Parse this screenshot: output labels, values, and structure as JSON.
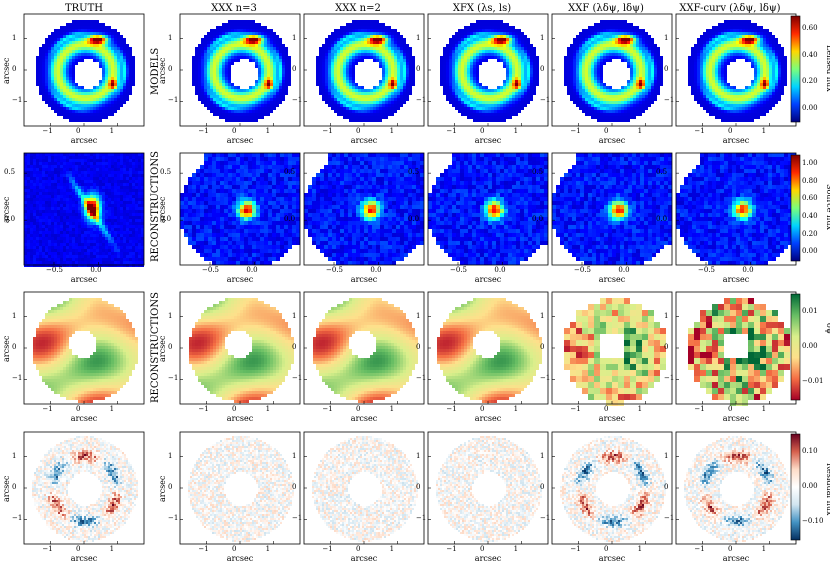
{
  "columns": [
    "TRUTH",
    "XXX n=3",
    "XXX n=2",
    "XFX (λs, ls)",
    "XXF (λδψ, lδψ)",
    "XXF-curv (λδψ, lδψ)"
  ],
  "row_labels": {
    "models": "MODELS",
    "reconstructions_source": "RECONSTRUCTIONS",
    "reconstructions_potential": "RECONSTRUCTIONS"
  },
  "axis_label": "arcsec",
  "ticks": {
    "image_x": [
      "−1",
      "0",
      "1"
    ],
    "image_y": [
      "1",
      "0",
      "−1"
    ],
    "source_x": [
      "−0.5",
      "0.0"
    ],
    "source_y": [
      "0.5",
      "0.0"
    ]
  },
  "colorbars": [
    {
      "label": "Lensed flux",
      "ticks": [
        "0.60",
        "0.40",
        "0.20",
        "0.00"
      ],
      "colors": [
        "#7f0000",
        "#ff2a00",
        "#ffd700",
        "#7cff7a",
        "#00d4ff",
        "#0040ff",
        "#00007f"
      ]
    },
    {
      "label": "Source flux",
      "ticks": [
        "1.00",
        "0.80",
        "0.60",
        "0.40",
        "0.20",
        "0.00"
      ],
      "colors": [
        "#7f0000",
        "#ff2a00",
        "#ffd700",
        "#7cff7a",
        "#00d4ff",
        "#0040ff",
        "#00007f"
      ]
    },
    {
      "label": "δψ",
      "ticks": [
        "0.01",
        "0.00",
        "−0.01"
      ],
      "colors": [
        "#006837",
        "#66bd63",
        "#d9ef8b",
        "#fee08b",
        "#f46d43",
        "#a50026"
      ]
    },
    {
      "label": "Residual flux",
      "ticks": [
        "0.10",
        "0.00",
        "−0.10"
      ],
      "colors": [
        "#67001f",
        "#d6604d",
        "#fddbc7",
        "#ffffff",
        "#d1e5f0",
        "#4393c3",
        "#053061"
      ]
    }
  ]
}
